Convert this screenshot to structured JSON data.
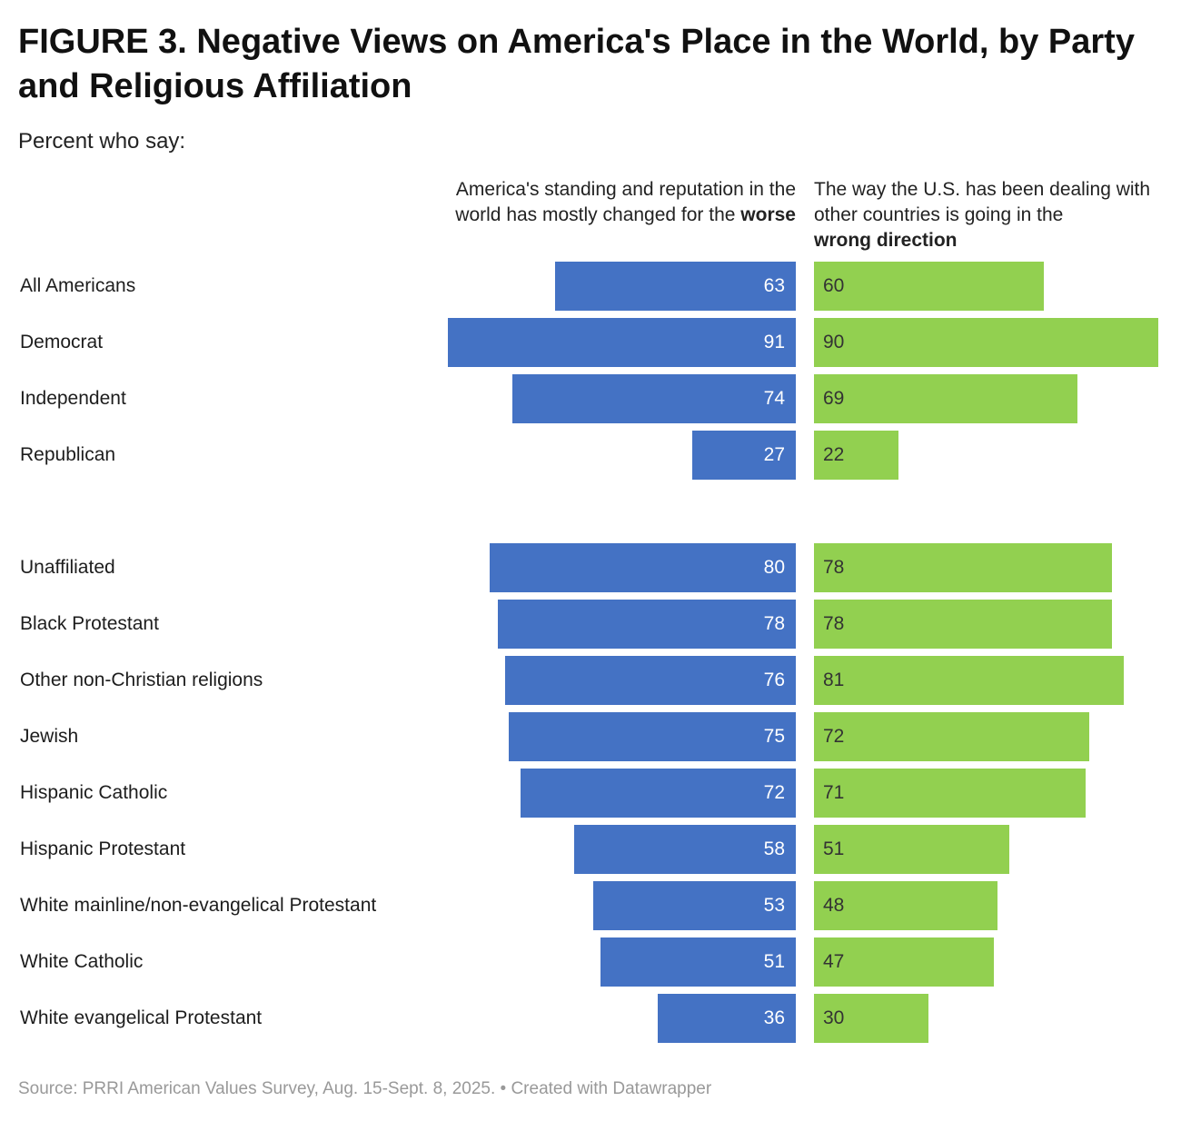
{
  "title": "FIGURE 3. Negative Views on America's Place in the World, by Party and Religious Affiliation",
  "subtitle": "Percent who say:",
  "source": "Source: PRRI American Values Survey, Aug. 15-Sept. 8, 2025. • Created with Datawrapper",
  "chart_data": {
    "type": "bar",
    "title": "FIGURE 3. Negative Views on America's Place in the World, by Party and Religious Affiliation",
    "categories": [
      "All Americans",
      "Democrat",
      "Independent",
      "Republican",
      "Unaffiliated",
      "Black Protestant",
      "Other non-Christian religions",
      "Jewish",
      "Hispanic Catholic",
      "Hispanic Protestant",
      "White mainline/non-evangelical Protestant",
      "White Catholic",
      "White evangelical Protestant"
    ],
    "groups": [
      [
        0,
        1,
        2,
        3
      ],
      [
        4,
        5,
        6,
        7,
        8,
        9,
        10,
        11,
        12
      ]
    ],
    "series": [
      {
        "name_pre": "America's standing and reputation in the world has mostly changed for the ",
        "name_bold": "worse",
        "color": "#4472c4",
        "values": [
          63,
          91,
          74,
          27,
          80,
          78,
          76,
          75,
          72,
          58,
          53,
          51,
          36
        ]
      },
      {
        "name_pre": "The way the U.S. has been dealing with other countries is going in the ",
        "name_bold": "wrong direction",
        "color": "#92d050",
        "values": [
          60,
          90,
          69,
          22,
          78,
          78,
          81,
          72,
          71,
          51,
          48,
          47,
          30
        ]
      }
    ],
    "xlim": [
      0,
      100
    ]
  }
}
